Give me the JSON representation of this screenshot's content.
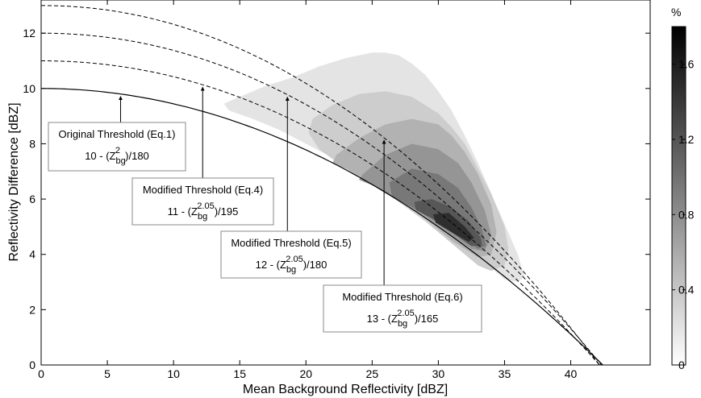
{
  "chart_data": {
    "type": "line",
    "xlabel": "Mean Background Reflectivity [dBZ]",
    "ylabel": "Reflectivity Difference [dBZ]",
    "xlim": [
      0,
      46
    ],
    "ylim": [
      0,
      13.2
    ],
    "xticks": [
      0,
      5,
      10,
      15,
      20,
      25,
      30,
      35,
      40
    ],
    "yticks": [
      0,
      2,
      4,
      6,
      8,
      10,
      12
    ],
    "grid": false,
    "series": [
      {
        "style": "solid",
        "exponent": 2,
        "a": 10,
        "b": 180
      },
      {
        "style": "dashed",
        "exponent": 2.05,
        "a": 11,
        "b": 195
      },
      {
        "style": "dashed",
        "exponent": 2.05,
        "a": 12,
        "b": 180
      },
      {
        "style": "dashed",
        "exponent": 2.05,
        "a": 13,
        "b": 165
      }
    ],
    "annotations": [
      {
        "title": "Original Threshold (Eq.1)",
        "f_pre": "10 - (Z",
        "f_sub": "bg",
        "f_sup": "2",
        "f_post": ")/180",
        "arrow_x": 6
      },
      {
        "title": "Modified Threshold (Eq.4)",
        "f_pre": "11 - (Z",
        "f_sub": "bg",
        "f_sup": "2.05",
        "f_post": ")/195",
        "arrow_x": 12.2
      },
      {
        "title": "Modified Threshold (Eq.5)",
        "f_pre": "12 - (Z",
        "f_sub": "bg",
        "f_sup": "2.05",
        "f_post": ")/180",
        "arrow_x": 18.6
      },
      {
        "title": "Modified Threshold (Eq.6)",
        "f_pre": "13 - (Z",
        "f_sub": "bg",
        "f_sup": "2.05",
        "f_post": ")/165",
        "arrow_x": 25.9
      }
    ],
    "density_contours": [
      {
        "level": 0.1,
        "color": "#e4e4e4",
        "x": [
          13.8,
          15,
          17,
          19,
          21,
          23,
          25,
          26,
          27,
          28,
          29,
          30,
          31,
          32,
          33,
          34,
          35,
          36,
          36.5,
          36,
          35,
          34,
          32,
          30,
          28,
          26,
          24,
          22,
          20,
          18,
          16,
          14.2
        ],
        "y": [
          9.45,
          9.7,
          10.1,
          10.4,
          10.8,
          11.1,
          11.3,
          11.3,
          11.2,
          10.9,
          10.5,
          9.9,
          9.2,
          8.3,
          7.3,
          6.2,
          5.1,
          4.0,
          3.2,
          3.0,
          3.1,
          3.5,
          4.3,
          5.1,
          5.9,
          6.5,
          7.0,
          7.5,
          8.0,
          8.5,
          8.9,
          9.2
        ]
      },
      {
        "level": 0.3,
        "color": "#cdcdcd",
        "x": [
          20.5,
          22,
          24,
          26,
          28,
          30,
          31,
          32,
          33,
          34,
          35,
          35.3,
          35,
          34,
          33,
          31,
          29,
          27,
          25,
          23,
          21,
          20.2
        ],
        "y": [
          8.9,
          9.4,
          9.8,
          9.9,
          9.7,
          9.1,
          8.6,
          8.0,
          7.1,
          6.2,
          5.0,
          4.2,
          3.6,
          3.4,
          3.6,
          4.4,
          5.2,
          5.9,
          6.5,
          7.1,
          7.8,
          8.4
        ]
      },
      {
        "level": 0.5,
        "color": "#b2b2b2",
        "x": [
          22.3,
          24,
          26,
          28,
          30,
          31,
          32,
          33,
          34,
          34.4,
          34,
          33,
          31,
          29,
          27,
          25,
          23,
          22
        ],
        "y": [
          7.6,
          8.2,
          8.7,
          8.9,
          8.7,
          8.3,
          7.7,
          6.9,
          5.8,
          4.8,
          4.0,
          3.9,
          4.5,
          5.3,
          6.0,
          6.6,
          7.1,
          7.3
        ]
      },
      {
        "level": 0.8,
        "color": "#959595",
        "x": [
          24.3,
          26,
          28,
          30,
          31.5,
          32.5,
          33.5,
          34,
          33.5,
          32.5,
          31,
          29,
          27,
          25,
          24
        ],
        "y": [
          6.9,
          7.6,
          8.0,
          7.8,
          7.3,
          6.6,
          5.6,
          4.7,
          4.1,
          4.2,
          4.7,
          5.4,
          6.0,
          6.5,
          6.7
        ]
      },
      {
        "level": 1.1,
        "color": "#787878",
        "x": [
          26.3,
          28,
          30,
          31.5,
          32.5,
          33.3,
          33.6,
          33,
          31.5,
          30,
          28,
          26.5
        ],
        "y": [
          6.6,
          7.1,
          6.9,
          6.4,
          5.7,
          4.9,
          4.3,
          4.2,
          4.7,
          5.2,
          5.7,
          6.1
        ]
      },
      {
        "level": 1.4,
        "color": "#575757",
        "x": [
          28.2,
          29.5,
          31,
          32.3,
          33.2,
          33.3,
          32.5,
          31,
          29.5,
          28.3
        ],
        "y": [
          5.9,
          6.0,
          5.7,
          5.2,
          4.6,
          4.3,
          4.3,
          4.8,
          5.3,
          5.6
        ]
      },
      {
        "level": 1.7,
        "color": "#2e2e2e",
        "x": [
          29.6,
          30.8,
          32,
          32.7,
          32.3,
          31,
          29.8
        ],
        "y": [
          5.45,
          5.5,
          5.0,
          4.6,
          4.45,
          4.8,
          5.15
        ]
      }
    ]
  },
  "colorbar": {
    "unit": "%",
    "ticks": [
      0,
      0.4,
      0.8,
      1.2,
      1.6
    ],
    "tick_labels": [
      "0",
      "0.4",
      "0.8",
      "1.2",
      "1.6"
    ],
    "min": 0,
    "max": 1.8,
    "color_low": "#ffffff",
    "color_high": "#000000"
  }
}
